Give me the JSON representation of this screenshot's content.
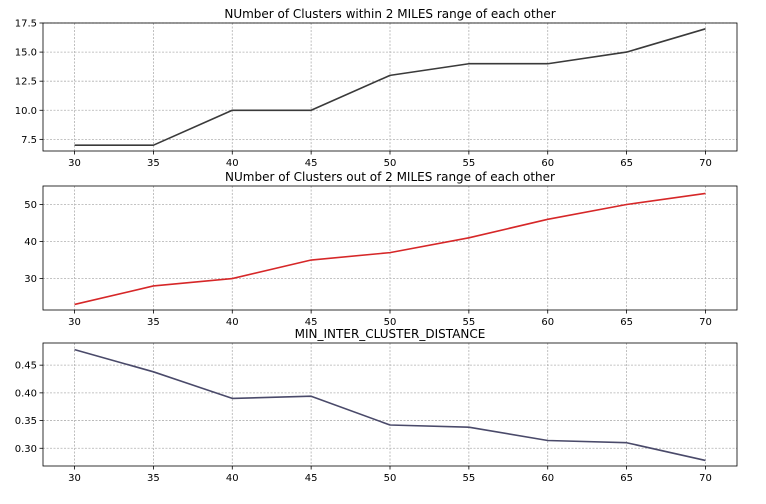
{
  "chart_data": [
    {
      "type": "line",
      "title": "NUmber of Clusters within 2 MILES range of each other",
      "xlabel": "",
      "ylabel": "",
      "x": [
        30,
        35,
        40,
        45,
        50,
        55,
        60,
        65,
        70
      ],
      "x_ticks": [
        "30",
        "35",
        "40",
        "45",
        "50",
        "55",
        "60",
        "65",
        "70"
      ],
      "y_ticks": [
        "7.5",
        "10.0",
        "12.5",
        "15.0",
        "17.5"
      ],
      "xlim": [
        28,
        72
      ],
      "ylim": [
        6.5,
        17.5
      ],
      "grid": true,
      "series": [
        {
          "values": [
            7,
            7,
            10,
            10,
            13,
            14,
            14,
            15,
            17
          ],
          "color": "#3a3a3a"
        }
      ]
    },
    {
      "type": "line",
      "title": "NUmber of Clusters out of 2 MILES range of each other",
      "xlabel": "",
      "ylabel": "",
      "x": [
        30,
        35,
        40,
        45,
        50,
        55,
        60,
        65,
        70
      ],
      "x_ticks": [
        "30",
        "35",
        "40",
        "45",
        "50",
        "55",
        "60",
        "65",
        "70"
      ],
      "y_ticks": [
        "30",
        "40",
        "50"
      ],
      "xlim": [
        28,
        72
      ],
      "ylim": [
        21.5,
        55
      ],
      "grid": true,
      "series": [
        {
          "values": [
            23,
            28,
            30,
            35,
            37,
            41,
            46,
            50,
            53
          ],
          "color": "#d62728"
        }
      ]
    },
    {
      "type": "line",
      "title": "MIN_INTER_CLUSTER_DISTANCE",
      "xlabel": "",
      "ylabel": "",
      "x": [
        30,
        35,
        40,
        45,
        50,
        55,
        60,
        65,
        70
      ],
      "x_ticks": [
        "30",
        "35",
        "40",
        "45",
        "50",
        "55",
        "60",
        "65",
        "70"
      ],
      "y_ticks": [
        "0.30",
        "0.35",
        "0.40",
        "0.45"
      ],
      "xlim": [
        28,
        72
      ],
      "ylim": [
        0.268,
        0.49
      ],
      "grid": true,
      "series": [
        {
          "values": [
            0.478,
            0.438,
            0.39,
            0.394,
            0.342,
            0.338,
            0.314,
            0.31,
            0.278
          ],
          "color": "#4a4a6a"
        }
      ]
    }
  ]
}
